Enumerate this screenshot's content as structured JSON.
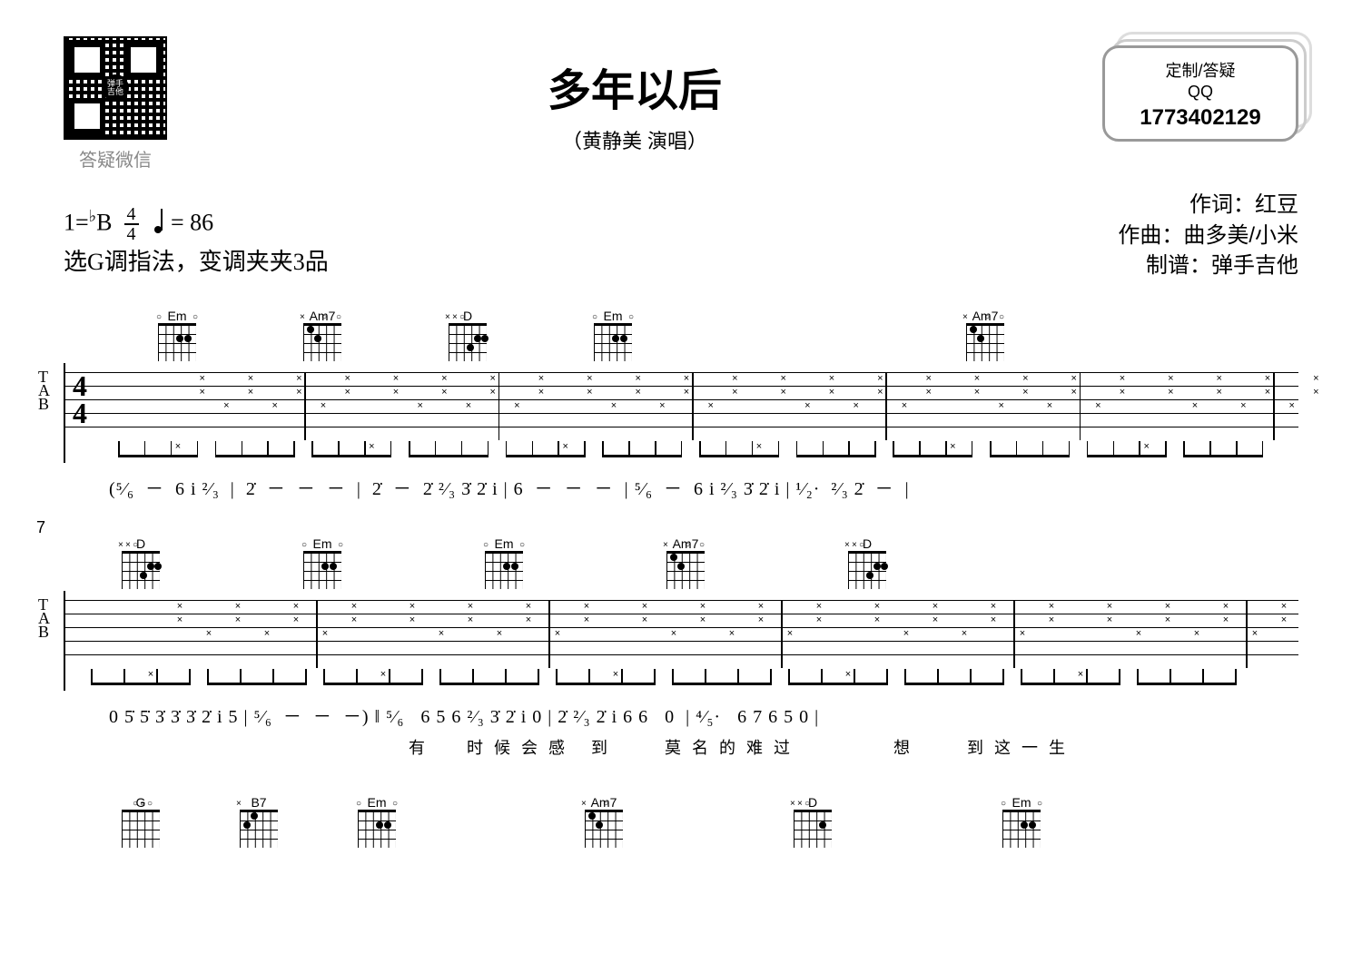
{
  "header": {
    "qr_label": "答疑微信",
    "qr_center_line1": "弹手",
    "qr_center_line2": "吉他",
    "title": "多年以后",
    "subtitle": "（黄静美  演唱）",
    "card_line1": "定制/答疑",
    "card_line2": "QQ",
    "card_qq": "1773402129"
  },
  "keyinfo": {
    "key_prefix": "1=",
    "key_accidental": "♭",
    "key_letter": "B",
    "time_top": "4",
    "time_bottom": "4",
    "tempo_eq": "= 86",
    "capo": "选G调指法，变调夹夹3品"
  },
  "credits": {
    "lyricist": "作词：红豆",
    "composer": "作曲：曲多美/小米",
    "transcriber": "制谱：弹手吉他"
  },
  "system1": {
    "chords": [
      "Em",
      "Am7",
      "D",
      "Em",
      "Am7"
    ],
    "tab_label": "T\nA\nB",
    "time_sig_top": "4",
    "time_sig_bottom": "4",
    "jianpu": "(⁵⁄₆  －  6 i ²⁄₃  |  2̇  －  －  －  |  2̇  －  2̇ ²⁄₃ 3̇ 2̇ i | 6  －  －  －  | ⁵⁄₆  －  6 i ²⁄₃ 3̇ 2̇ i | ¹⁄₂·  ²⁄₃ 2̇  －  |"
  },
  "system2": {
    "num": "7",
    "chords": [
      "D",
      "Em",
      "Em",
      "Am7",
      "D"
    ],
    "tab_label": "T\nA\nB",
    "jianpu": "0 5̇ 5̇ 3̇ 3̇ 3̇ 2̇ i 5 | ⁵⁄₆  －  －  －) ‖ ⁵⁄₆   6 5 6 ²⁄₃ 3̇ 2̇ i 0 | 2̇ ²⁄₃ 2̇ i 6 6   0  | ⁴⁄₅·   6 7 6 5 0 |",
    "lyrics": "有  时候会感 到   莫名的难过      想   到这一生"
  },
  "bottom_chords": [
    "G",
    "B7",
    "Em",
    "Am7",
    "D",
    "Em"
  ]
}
